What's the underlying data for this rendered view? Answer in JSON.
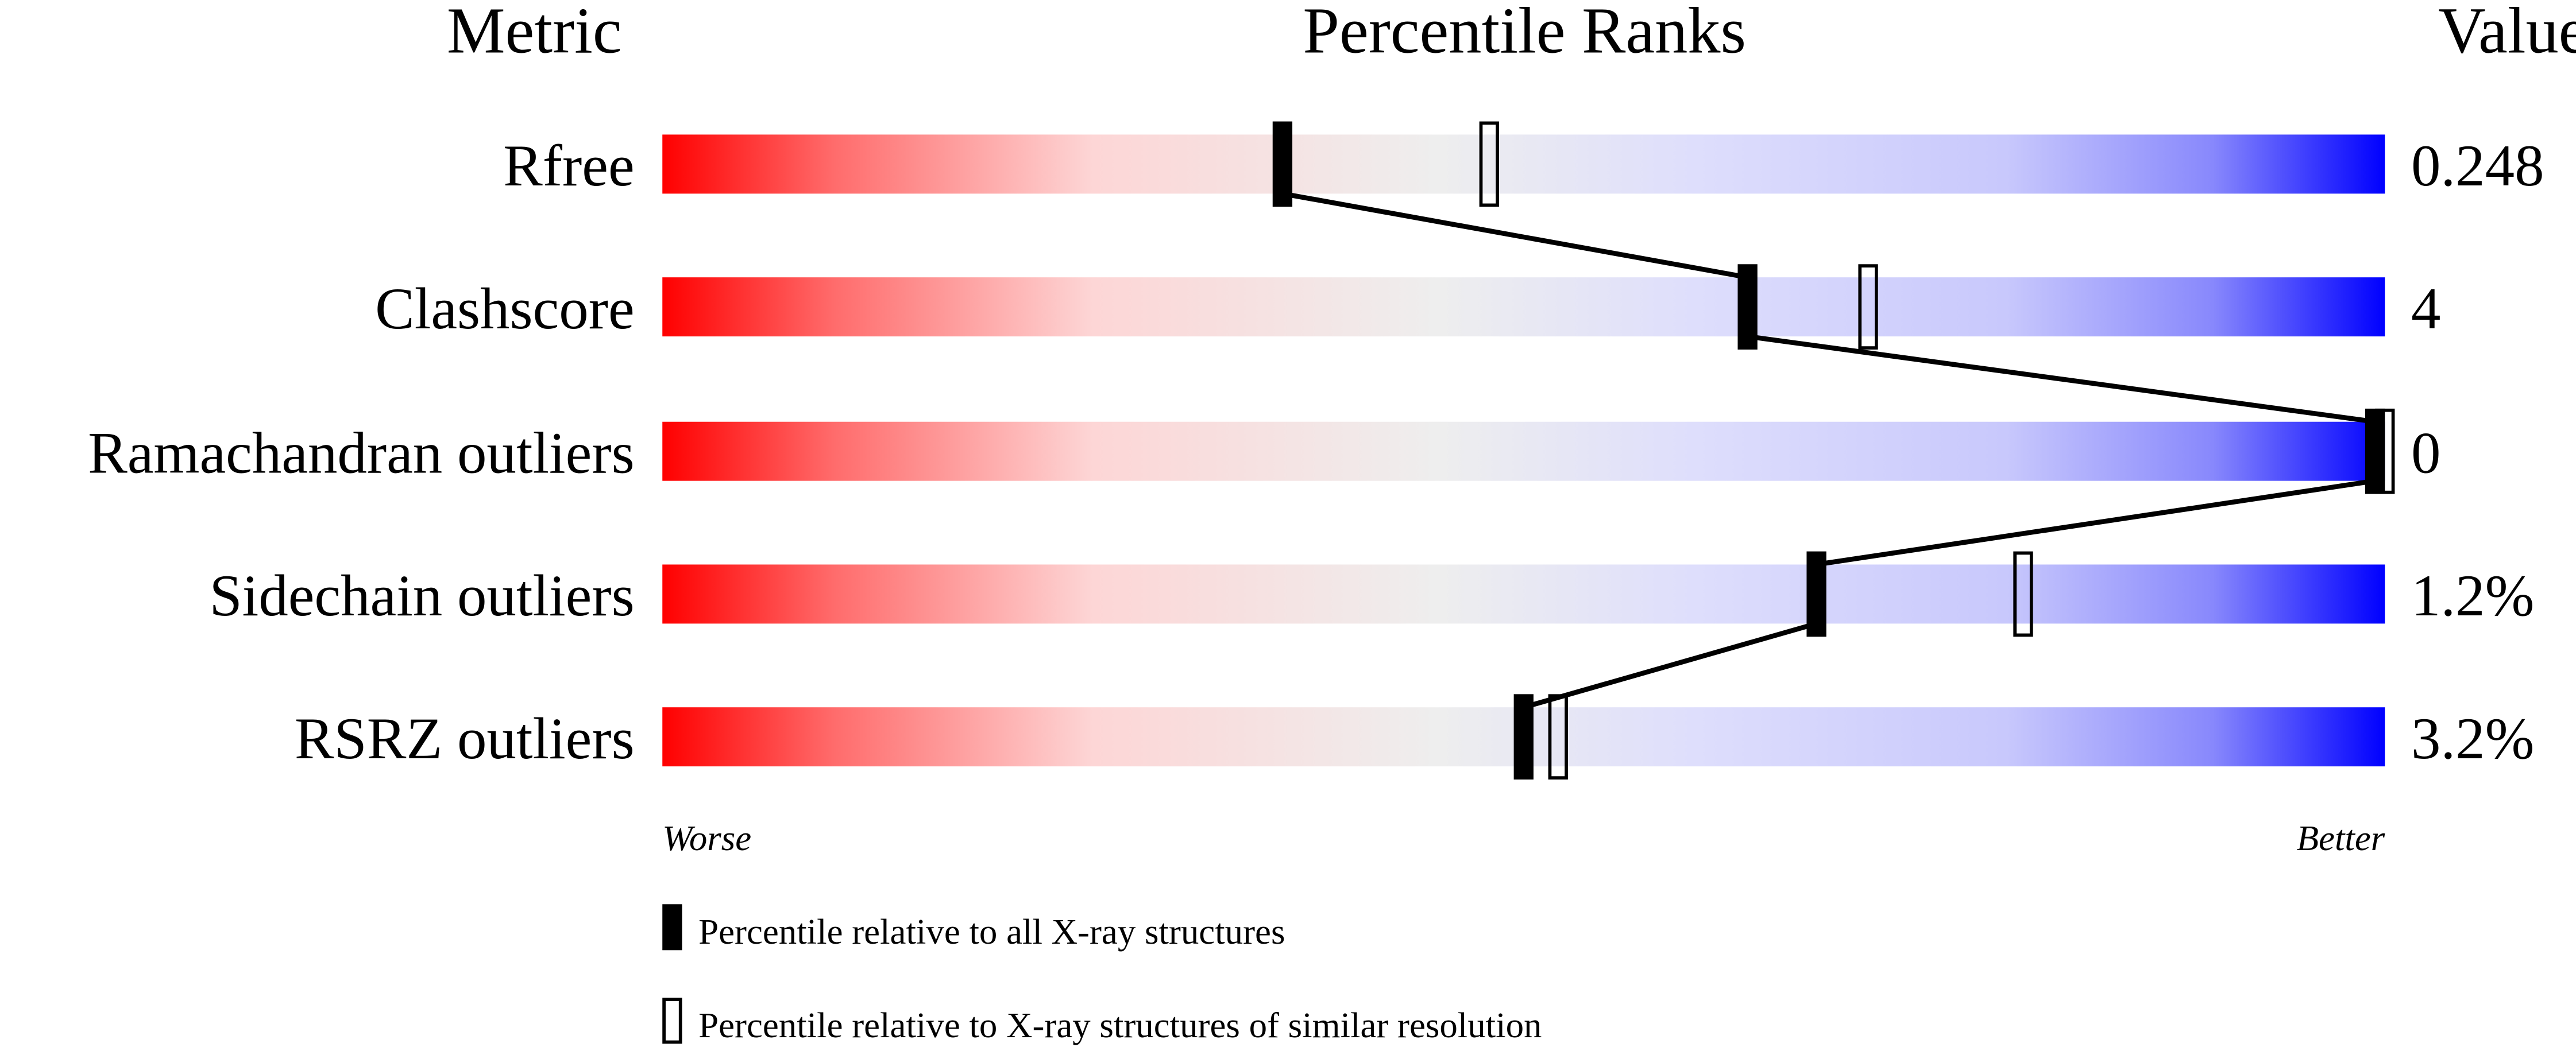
{
  "chart_data": {
    "type": "bar",
    "headers": {
      "metric": "Metric",
      "percentile": "Percentile Ranks",
      "value": "Value"
    },
    "categories": [
      "Rfree",
      "Clashscore",
      "Ramachandran outliers",
      "Sidechain outliers",
      "RSRZ outliers"
    ],
    "values": [
      "0.248",
      "4",
      "0",
      "1.2%",
      "3.2%"
    ],
    "series": [
      {
        "name": "Percentile relative to all X-ray structures",
        "marker": "filled",
        "values": [
          36,
          63,
          100,
          67,
          50
        ]
      },
      {
        "name": "Percentile relative to X-ray structures of similar resolution",
        "marker": "open",
        "values": [
          48,
          70,
          100,
          79,
          52
        ]
      }
    ],
    "xlim": [
      0,
      100
    ],
    "axis_left_label": "Worse",
    "axis_right_label": "Better",
    "colors": {
      "worse": "#ff0000",
      "middle": "#eeeeee",
      "better": "#0000ff",
      "marker": "#000000"
    },
    "legend_placement": "bottom"
  }
}
